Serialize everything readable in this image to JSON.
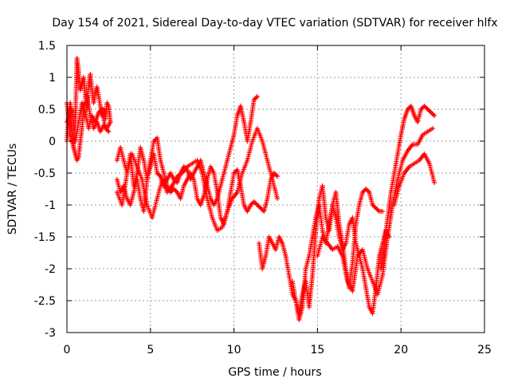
{
  "chart_data": {
    "type": "scatter",
    "title": "Day 154 of 2021, Sidereal Day-to-day VTEC variation (SDTVAR) for receiver hlfx",
    "xlabel": "GPS time / hours",
    "ylabel": "SDTVAR / TECUs",
    "xlim": [
      0,
      25
    ],
    "ylim": [
      -3,
      1.5
    ],
    "x_ticks": [
      "0",
      "5",
      "10",
      "15",
      "20",
      "25"
    ],
    "y_ticks": [
      "1.5",
      "1",
      "0.5",
      "0",
      "-0.5",
      "-1",
      "-1.5",
      "-2",
      "-2.5",
      "-3"
    ],
    "grid": true,
    "marker": "+",
    "color": "#ff0000",
    "series": [
      {
        "x": [
          0.0,
          0.1,
          0.2,
          0.3,
          0.4,
          0.5,
          0.6,
          0.7,
          0.8,
          0.9,
          1.0,
          1.1,
          1.2,
          1.3,
          1.4,
          1.5,
          1.6,
          1.7,
          1.8,
          1.9,
          2.0,
          2.1,
          2.2,
          2.3,
          2.4,
          2.5,
          2.6
        ],
        "y": [
          0.0,
          0.4,
          0.6,
          0.2,
          -0.1,
          0.3,
          1.3,
          1.1,
          0.8,
          0.9,
          1.0,
          0.7,
          0.5,
          0.9,
          1.05,
          0.8,
          0.6,
          0.75,
          0.85,
          0.7,
          0.55,
          0.4,
          0.5,
          0.35,
          0.6,
          0.55,
          0.3
        ]
      },
      {
        "x": [
          0.0,
          0.2,
          0.4,
          0.5,
          0.6,
          0.7,
          0.8,
          0.9,
          1.0,
          1.2,
          1.4,
          1.6,
          1.8,
          2.0,
          2.2,
          2.4,
          2.6
        ],
        "y": [
          0.6,
          0.1,
          -0.1,
          -0.2,
          -0.3,
          -0.25,
          0.0,
          0.2,
          0.5,
          0.7,
          0.4,
          0.2,
          0.3,
          0.15,
          0.25,
          0.2,
          0.3
        ]
      },
      {
        "x": [
          0.0,
          0.3,
          0.5,
          0.7,
          0.9,
          1.1,
          1.3,
          1.5,
          1.7,
          1.9,
          2.1,
          2.3,
          2.5
        ],
        "y": [
          0.3,
          0.5,
          0.0,
          0.3,
          0.6,
          0.45,
          0.2,
          0.4,
          0.3,
          0.45,
          0.5,
          0.2,
          0.15
        ]
      },
      {
        "x": [
          3.0,
          3.2,
          3.4,
          3.6,
          3.8,
          4.0,
          4.2,
          4.4,
          4.6,
          4.8,
          5.0,
          5.2,
          5.4,
          5.6,
          5.8,
          6.0,
          6.2,
          6.4,
          6.6,
          6.8,
          7.0,
          7.2,
          7.4,
          7.6,
          7.8,
          8.0,
          8.2,
          8.4,
          8.6,
          8.8,
          9.0,
          9.2,
          9.4,
          9.6,
          9.8,
          10.0,
          10.2,
          10.4,
          10.6,
          10.8,
          11.0,
          11.2,
          11.4
        ],
        "y": [
          -0.3,
          -0.1,
          -0.3,
          -0.5,
          -0.2,
          -0.7,
          -0.5,
          -0.1,
          -0.3,
          -0.6,
          -0.4,
          -0.2,
          -0.5,
          -0.55,
          -0.7,
          -0.6,
          -0.5,
          -0.6,
          -0.65,
          -0.5,
          -0.4,
          -0.45,
          -0.6,
          -0.5,
          -0.4,
          -0.3,
          -0.5,
          -0.7,
          -0.9,
          -1.0,
          -0.9,
          -0.7,
          -0.5,
          -0.3,
          -0.1,
          0.1,
          0.4,
          0.55,
          0.3,
          0.0,
          0.3,
          0.65,
          0.7
        ]
      },
      {
        "x": [
          3.0,
          3.2,
          3.4,
          3.6,
          3.8,
          4.0,
          4.2,
          4.4,
          4.6,
          4.8,
          5.0,
          5.2,
          5.4,
          5.6,
          5.8,
          6.0,
          6.2,
          6.4,
          6.6,
          6.8,
          7.0,
          7.2,
          7.4,
          7.6,
          7.8,
          8.0,
          8.2,
          8.4,
          8.6,
          8.8,
          9.0,
          9.2,
          9.4,
          9.6,
          9.8,
          10.0,
          10.2,
          10.4,
          10.6,
          10.8,
          11.0,
          11.2,
          11.4,
          11.6,
          11.8,
          12.0,
          12.2,
          12.4,
          12.6
        ],
        "y": [
          -0.6,
          -0.8,
          -0.7,
          -0.9,
          -1.0,
          -0.8,
          -0.6,
          -0.9,
          -1.1,
          -0.6,
          -0.3,
          0.0,
          0.05,
          -0.3,
          -0.5,
          -0.7,
          -0.8,
          -0.75,
          -0.8,
          -0.9,
          -0.7,
          -0.6,
          -0.5,
          -0.6,
          -0.9,
          -1.0,
          -0.85,
          -0.6,
          -0.4,
          -0.5,
          -0.8,
          -1.2,
          -1.3,
          -1.1,
          -0.8,
          -0.5,
          -0.45,
          -0.7,
          -1.0,
          -1.1,
          -1.0,
          -0.95,
          -1.0,
          -1.05,
          -1.1,
          -0.9,
          -0.6,
          -0.5,
          -0.55
        ]
      },
      {
        "x": [
          3.0,
          3.3,
          3.6,
          3.9,
          4.2,
          4.5,
          4.8,
          5.1,
          5.4,
          5.7,
          6.0,
          6.3,
          6.6,
          6.9,
          7.2,
          7.5,
          7.8,
          8.1,
          8.4,
          8.7,
          9.0,
          9.3,
          9.6,
          9.9,
          10.2,
          10.5,
          10.8,
          11.1,
          11.4,
          11.7,
          12.0,
          12.3,
          12.6
        ],
        "y": [
          -0.8,
          -1.0,
          -0.5,
          -0.2,
          -0.4,
          -0.6,
          -1.0,
          -1.2,
          -0.9,
          -0.6,
          -0.8,
          -0.7,
          -0.55,
          -0.5,
          -0.4,
          -0.35,
          -0.3,
          -0.5,
          -0.9,
          -1.2,
          -1.4,
          -1.35,
          -1.1,
          -0.9,
          -0.8,
          -0.5,
          -0.3,
          0.0,
          0.2,
          0.0,
          -0.3,
          -0.6,
          -0.9
        ]
      },
      {
        "x": [
          11.5,
          11.7,
          11.9,
          12.1,
          12.3,
          12.5,
          12.7,
          12.9,
          13.1,
          13.3,
          13.5,
          13.7,
          13.9,
          14.1,
          14.3,
          14.5,
          14.7,
          14.9,
          15.1,
          15.3,
          15.5,
          15.7,
          15.9,
          16.1,
          16.3,
          16.5,
          16.7,
          16.9,
          17.1,
          17.3,
          17.5,
          17.7,
          17.9,
          18.1,
          18.3,
          18.5,
          18.7,
          18.9
        ],
        "y": [
          -1.6,
          -2.0,
          -1.8,
          -1.5,
          -1.6,
          -1.7,
          -1.5,
          -1.6,
          -1.8,
          -2.1,
          -2.4,
          -2.5,
          -2.7,
          -2.4,
          -2.2,
          -2.6,
          -2.1,
          -1.4,
          -0.9,
          -0.7,
          -1.2,
          -1.4,
          -1.0,
          -0.8,
          -1.3,
          -1.6,
          -2.0,
          -2.3,
          -1.9,
          -1.3,
          -1.0,
          -0.8,
          -0.75,
          -0.8,
          -1.0,
          -1.05,
          -1.1,
          -1.1
        ]
      },
      {
        "x": [
          13.5,
          13.7,
          13.9,
          14.1,
          14.3,
          14.5,
          14.7,
          14.9,
          15.1,
          15.3,
          15.5,
          15.7,
          15.9,
          16.1,
          16.3,
          16.5,
          16.7,
          16.9,
          17.1,
          17.3,
          17.5,
          17.7,
          17.9,
          18.1,
          18.3,
          18.5,
          18.7,
          18.9,
          19.1,
          19.3
        ],
        "y": [
          -2.2,
          -2.5,
          -2.8,
          -2.6,
          -2.0,
          -1.8,
          -1.5,
          -1.2,
          -1.0,
          -1.4,
          -1.6,
          -1.3,
          -1.0,
          -1.2,
          -1.5,
          -1.7,
          -1.6,
          -1.3,
          -1.2,
          -1.6,
          -1.8,
          -2.0,
          -2.3,
          -2.6,
          -2.7,
          -2.3,
          -1.8,
          -1.6,
          -1.4,
          -1.5
        ]
      },
      {
        "x": [
          15.0,
          15.3,
          15.6,
          15.9,
          16.2,
          16.5,
          16.8,
          17.1,
          17.4,
          17.7,
          18.0,
          18.3,
          18.6,
          18.9,
          19.2,
          19.5,
          19.8,
          20.1,
          20.4,
          20.7,
          21.0,
          21.3,
          21.6,
          21.9
        ],
        "y": [
          -1.8,
          -1.5,
          -1.6,
          -1.7,
          -1.65,
          -1.8,
          -2.2,
          -2.35,
          -1.8,
          -1.7,
          -2.0,
          -2.2,
          -2.4,
          -2.1,
          -1.5,
          -1.0,
          -0.6,
          -0.3,
          -0.15,
          -0.05,
          -0.05,
          0.1,
          0.15,
          0.2
        ]
      },
      {
        "x": [
          18.8,
          19.0,
          19.2,
          19.4,
          19.6,
          19.8,
          20.0,
          20.2,
          20.4,
          20.6,
          20.8,
          21.0,
          21.2,
          21.4,
          21.6,
          21.8,
          22.0
        ],
        "y": [
          -2.0,
          -1.6,
          -1.2,
          -0.8,
          -0.5,
          -0.2,
          0.1,
          0.35,
          0.5,
          0.55,
          0.4,
          0.3,
          0.5,
          0.55,
          0.5,
          0.45,
          0.4
        ]
      },
      {
        "x": [
          19.6,
          19.9,
          20.2,
          20.5,
          20.8,
          21.1,
          21.4,
          21.7,
          22.0
        ],
        "y": [
          -1.0,
          -0.7,
          -0.5,
          -0.4,
          -0.35,
          -0.3,
          -0.2,
          -0.35,
          -0.65
        ]
      }
    ]
  }
}
